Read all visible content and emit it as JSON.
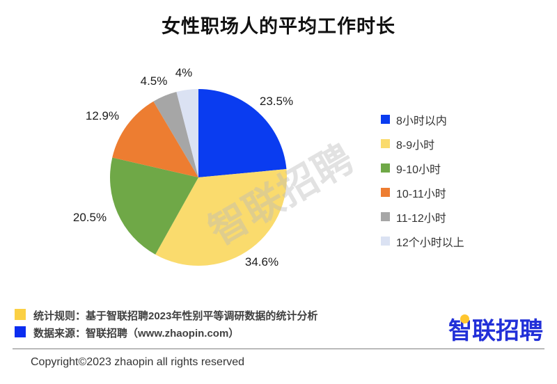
{
  "title": "女性职场人的平均工作时长",
  "chart_data": {
    "type": "pie",
    "title": "女性职场人的平均工作时长",
    "categories": [
      "8小时以内",
      "8-9小时",
      "9-10小时",
      "10-11小时",
      "11-12小时",
      "12个小时以上"
    ],
    "values": [
      23.5,
      34.6,
      20.5,
      12.9,
      4.5,
      4
    ],
    "value_labels": [
      "23.5%",
      "34.6%",
      "20.5%",
      "12.9%",
      "4.5%",
      "4%"
    ],
    "colors": [
      "#0a3cf0",
      "#fadb6d",
      "#6fa847",
      "#ed7d31",
      "#a6a6a6",
      "#dbe2f3"
    ],
    "legend_position": "right",
    "start_angle": "top",
    "direction": "clockwise"
  },
  "watermark": "智联招聘",
  "footer": {
    "notes": [
      {
        "swatch_color": "#fbd044",
        "text": "统计规则：基于智联招聘2023年性别平等调研数据的统计分析"
      },
      {
        "swatch_color": "#0b2df0",
        "text": "数据来源：智联招聘（www.zhaopin.com）"
      }
    ],
    "copyright": "Copyright©2023 zhaopin all rights reserved",
    "logo_text": "智联招聘",
    "logo_color": "#2230d8",
    "logo_accent_color": "#ffc62e"
  }
}
